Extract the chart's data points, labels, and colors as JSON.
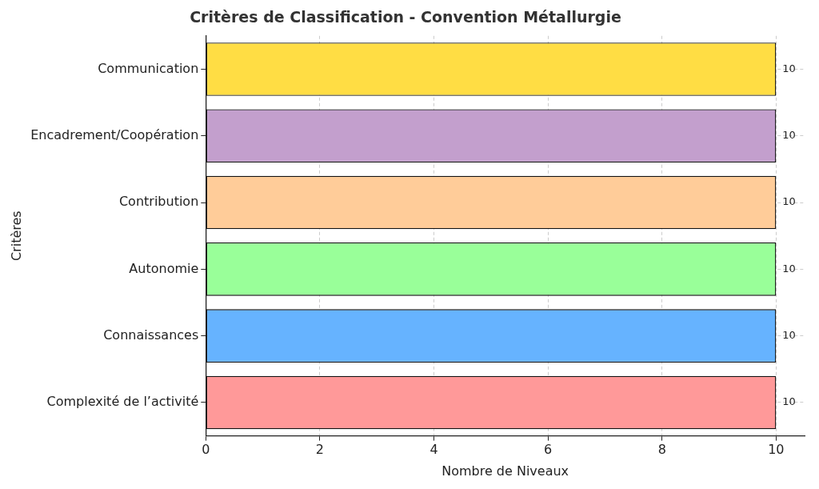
{
  "chart_data": {
    "type": "bar",
    "orientation": "horizontal",
    "title": "Critères de Classification - Convention Métallurgie",
    "xlabel": "Nombre de Niveaux",
    "ylabel": "Critères",
    "categories": [
      "Communication",
      "Encadrement/Coopération",
      "Contribution",
      "Autonomie",
      "Connaissances",
      "Complexité de l’activité"
    ],
    "values": [
      10,
      10,
      10,
      10,
      10,
      10
    ],
    "colors": [
      "#ffdd44",
      "#c39fcd",
      "#ffcc99",
      "#99ff99",
      "#66b3ff",
      "#ff9999"
    ],
    "xlim": [
      0,
      10.5
    ],
    "xticks": [
      0,
      2,
      4,
      6,
      8,
      10
    ],
    "grid": true,
    "data_labels": true,
    "legend": false
  }
}
